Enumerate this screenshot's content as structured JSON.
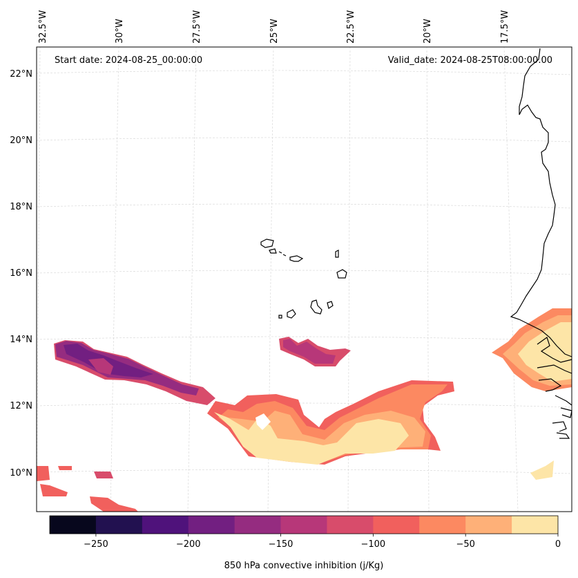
{
  "map": {
    "start_label": "Start date: 2024-08-25_00:00:00",
    "valid_label": "Valid_date: 2024-08-25T08:00:00.00",
    "longitude_labels": [
      "32.5°W",
      "30°W",
      "27.5°W",
      "25°W",
      "22.5°W",
      "20°W",
      "17.5°W"
    ],
    "latitude_labels": [
      "22°N",
      "20°N",
      "18°N",
      "16°N",
      "14°N",
      "12°N",
      "10°N"
    ],
    "region": "Cabo Verde / West African coast"
  },
  "colorbar": {
    "label": "850 hPa convective inhibition (j/Kg)",
    "tick_labels": [
      "−250",
      "−200",
      "−150",
      "−100",
      "−50",
      "0"
    ],
    "levels": [
      -275,
      -250,
      -225,
      -200,
      -175,
      -150,
      -125,
      -100,
      -75,
      -50,
      -25,
      0
    ],
    "colors": [
      "#07071d",
      "#221150",
      "#4f127b",
      "#721f81",
      "#952c80",
      "#b73779",
      "#d84c6b",
      "#f1605d",
      "#fc8961",
      "#feb078",
      "#fde5a7"
    ]
  },
  "colors": {
    "cin_0_to_m25": "#fde5a7",
    "cin_m25_to_m50": "#feb078",
    "cin_m50_to_m75": "#fc8961",
    "cin_m75_to_m100": "#f1605d",
    "cin_m100_to_m125": "#d84c6b",
    "cin_m125_to_m150": "#b73779",
    "cin_m150_to_m175": "#952c80",
    "cin_m175_to_m200": "#721f81",
    "cin_m200_to_m225": "#4f127b",
    "gridline": "#d9d9d9",
    "coastline": "#000000"
  }
}
